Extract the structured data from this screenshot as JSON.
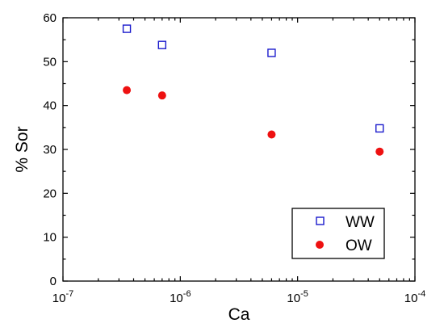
{
  "chart_data": {
    "type": "scatter",
    "title": "",
    "xlabel": "Ca",
    "ylabel": "% Sor",
    "x_scale": "log",
    "xlim": [
      1e-07,
      0.0001
    ],
    "ylim": [
      0,
      60
    ],
    "x_ticks": [
      {
        "value": 1e-07,
        "mantissa": "10",
        "exponent": "-7"
      },
      {
        "value": 1e-06,
        "mantissa": "10",
        "exponent": "-6"
      },
      {
        "value": 1e-05,
        "mantissa": "10",
        "exponent": "-5"
      },
      {
        "value": 0.0001,
        "mantissa": "10",
        "exponent": "-4"
      }
    ],
    "y_ticks": [
      "0",
      "10",
      "20",
      "30",
      "40",
      "50",
      "60"
    ],
    "grid": false,
    "legend_position": "bottom-right",
    "series": [
      {
        "name": "WW",
        "marker": "open-square",
        "color": "#1a1acc",
        "x": [
          3.5e-07,
          7e-07,
          6e-06,
          5e-05
        ],
        "y": [
          57.5,
          53.8,
          52.0,
          34.8
        ]
      },
      {
        "name": "OW",
        "marker": "filled-circle",
        "color": "#ee1111",
        "x": [
          3.5e-07,
          7e-07,
          6e-06,
          5e-05
        ],
        "y": [
          43.5,
          42.3,
          33.4,
          29.5
        ]
      }
    ]
  }
}
